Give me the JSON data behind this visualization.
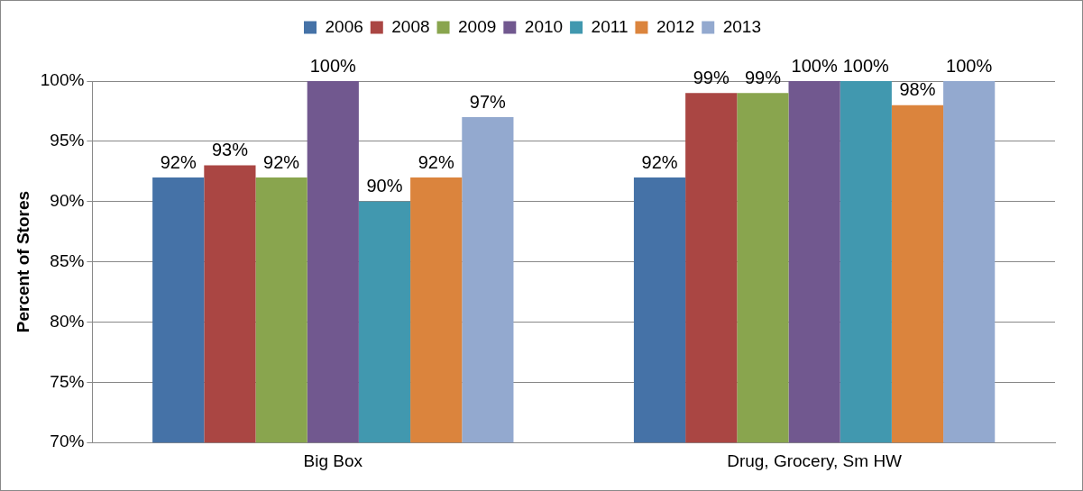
{
  "chart_data": {
    "type": "bar",
    "ylabel": "Percent of Stores",
    "categories": [
      "Big Box",
      "Drug, Grocery, Sm HW"
    ],
    "series": [
      {
        "name": "2006",
        "color": "#4572a7",
        "values": [
          92,
          92
        ],
        "value_labels": [
          "92%",
          "92%"
        ]
      },
      {
        "name": "2008",
        "color": "#aa4643",
        "values": [
          93,
          99
        ],
        "value_labels": [
          "93%",
          "99%"
        ]
      },
      {
        "name": "2009",
        "color": "#89a54e",
        "values": [
          92,
          99
        ],
        "value_labels": [
          "92%",
          "99%"
        ]
      },
      {
        "name": "2010",
        "color": "#71588f",
        "values": [
          100,
          100
        ],
        "value_labels": [
          "100%",
          "100%"
        ]
      },
      {
        "name": "2011",
        "color": "#4198af",
        "values": [
          90,
          100
        ],
        "value_labels": [
          "90%",
          "100%"
        ]
      },
      {
        "name": "2012",
        "color": "#db843d",
        "values": [
          92,
          98
        ],
        "value_labels": [
          "92%",
          "98%"
        ]
      },
      {
        "name": "2013",
        "color": "#93a9cf",
        "values": [
          97,
          100
        ],
        "value_labels": [
          "97%",
          "100%"
        ]
      }
    ],
    "ylim": [
      70,
      100
    ],
    "yticks": [
      {
        "value": 70,
        "label": "70%"
      },
      {
        "value": 75,
        "label": "75%"
      },
      {
        "value": 80,
        "label": "80%"
      },
      {
        "value": 85,
        "label": "85%"
      },
      {
        "value": 90,
        "label": "90%"
      },
      {
        "value": 95,
        "label": "95%"
      },
      {
        "value": 100,
        "label": "100%"
      }
    ],
    "grid": "y",
    "legend": "top"
  }
}
